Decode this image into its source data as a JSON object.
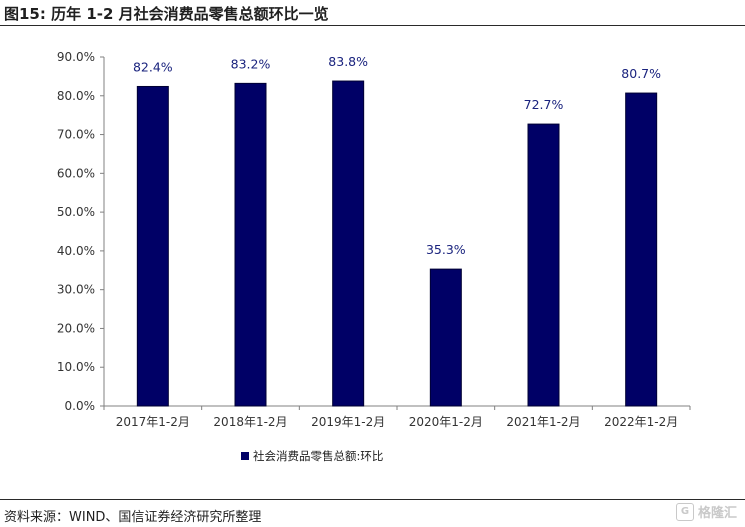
{
  "figure": {
    "title": "图15: 历年 1-2 月社会消费品零售总额环比一览",
    "source": "资料来源：WIND、国信证券经济研究所整理",
    "watermark": "格隆汇",
    "watermark_icon": "G-logo-icon"
  },
  "chart_data": {
    "type": "bar",
    "title": "",
    "xlabel": "",
    "ylabel": "",
    "categories": [
      "2017年1-2月",
      "2018年1-2月",
      "2019年1-2月",
      "2020年1-2月",
      "2021年1-2月",
      "2022年1-2月"
    ],
    "series": [
      {
        "name": "社会消费品零售总额:环比",
        "values": [
          82.4,
          83.2,
          83.8,
          35.3,
          72.7,
          80.7
        ],
        "labels": [
          "82.4%",
          "83.2%",
          "83.8%",
          "35.3%",
          "72.7%",
          "80.7%"
        ],
        "color": "#000066"
      }
    ],
    "ylim": [
      0,
      90
    ],
    "yticks": [
      0,
      10,
      20,
      30,
      40,
      50,
      60,
      70,
      80,
      90
    ],
    "ytick_labels": [
      "0.0%",
      "10.0%",
      "20.0%",
      "30.0%",
      "40.0%",
      "50.0%",
      "60.0%",
      "70.0%",
      "80.0%",
      "90.0%"
    ],
    "grid": false,
    "legend": "bottom-center",
    "label_color": "#1a237e",
    "axis_color": "#808080"
  }
}
